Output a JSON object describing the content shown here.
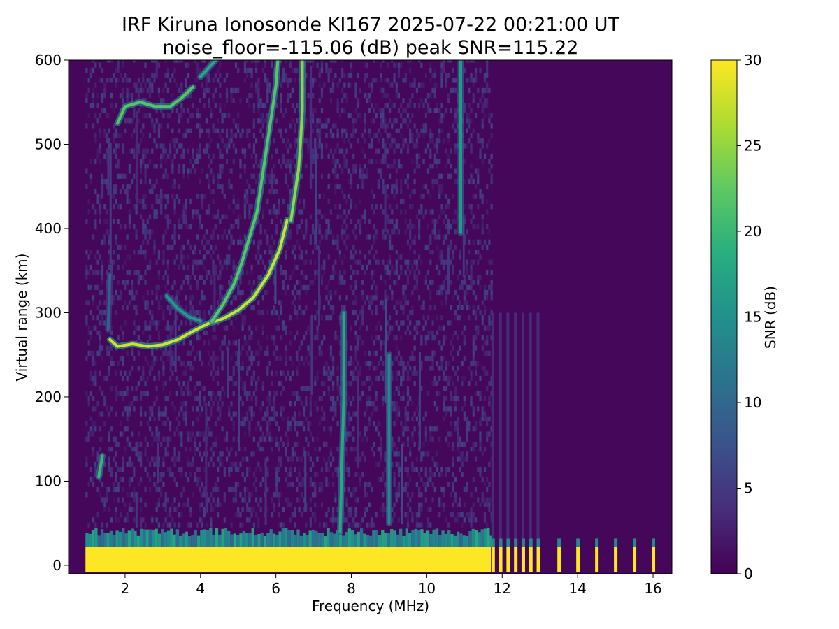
{
  "chart_data": {
    "type": "heatmap",
    "title": "IRF Kiruna Ionosonde KI167 2025-07-22 00:21:00  UT",
    "subtitle": "noise_floor=-115.06 (dB) peak SNR=115.22",
    "xlabel": "Frequency (MHz)",
    "ylabel": "Virtual range (km)",
    "xlim": [
      0.5,
      16.5
    ],
    "ylim": [
      -10,
      600
    ],
    "xticks": [
      2,
      4,
      6,
      8,
      10,
      12,
      14,
      16
    ],
    "yticks": [
      0,
      100,
      200,
      300,
      400,
      500,
      600
    ],
    "grid": false,
    "colorbar": {
      "label": "SNR (dB)",
      "range": [
        0,
        30
      ],
      "ticks": [
        0,
        5,
        10,
        15,
        20,
        25,
        30
      ],
      "colormap": "viridis"
    },
    "background_snr": 0.5,
    "sweep_start_mhz": 0.95,
    "stepped_start_mhz": 11.7,
    "ground_echo": {
      "range_km": [
        -8,
        22
      ],
      "snr": 30
    },
    "ground_fringe": {
      "range_km": [
        22,
        45
      ],
      "snr": 10
    },
    "stepped_frequencies_mhz": [
      11.75,
      11.95,
      12.15,
      12.35,
      12.55,
      12.75,
      12.95,
      13.5,
      14.0,
      14.5,
      15.0,
      15.5,
      16.0
    ],
    "traces": [
      {
        "name_visible": false,
        "snr": 28,
        "points": [
          [
            1.6,
            268
          ],
          [
            1.8,
            260
          ],
          [
            2.2,
            263
          ],
          [
            2.6,
            260
          ],
          [
            3.0,
            262
          ],
          [
            3.4,
            268
          ],
          [
            3.8,
            278
          ],
          [
            4.2,
            287
          ],
          [
            4.6,
            293
          ],
          [
            5.0,
            303
          ],
          [
            5.4,
            318
          ],
          [
            5.8,
            345
          ],
          [
            6.1,
            375
          ],
          [
            6.3,
            410
          ]
        ]
      },
      {
        "name_visible": false,
        "snr": 22,
        "points": [
          [
            4.3,
            290
          ],
          [
            4.6,
            310
          ],
          [
            4.9,
            335
          ],
          [
            5.1,
            360
          ],
          [
            5.3,
            390
          ],
          [
            5.5,
            420
          ],
          [
            5.6,
            450
          ],
          [
            5.7,
            480
          ],
          [
            5.8,
            510
          ],
          [
            5.9,
            540
          ],
          [
            6.0,
            570
          ],
          [
            6.05,
            600
          ]
        ]
      },
      {
        "name_visible": false,
        "snr": 25,
        "points": [
          [
            6.4,
            410
          ],
          [
            6.5,
            440
          ],
          [
            6.6,
            470
          ],
          [
            6.65,
            500
          ],
          [
            6.7,
            540
          ],
          [
            6.7,
            600
          ]
        ]
      },
      {
        "name_visible": false,
        "snr": 16,
        "points": [
          [
            3.1,
            320
          ],
          [
            3.4,
            305
          ],
          [
            3.7,
            295
          ],
          [
            4.0,
            290
          ]
        ]
      },
      {
        "name_visible": false,
        "snr": 22,
        "points": [
          [
            1.8,
            525
          ],
          [
            2.0,
            545
          ],
          [
            2.4,
            550
          ],
          [
            2.8,
            545
          ],
          [
            3.2,
            545
          ],
          [
            3.5,
            555
          ],
          [
            3.8,
            568
          ]
        ]
      },
      {
        "name_visible": false,
        "snr": 18,
        "points": [
          [
            4.0,
            580
          ],
          [
            4.2,
            590
          ],
          [
            4.4,
            600
          ]
        ]
      },
      {
        "name_visible": false,
        "snr": 16,
        "points": [
          [
            10.9,
            395
          ],
          [
            10.9,
            600
          ]
        ]
      },
      {
        "name_visible": false,
        "snr": 18,
        "points": [
          [
            7.7,
            40
          ],
          [
            7.75,
            120
          ],
          [
            7.8,
            200
          ],
          [
            7.8,
            300
          ]
        ]
      },
      {
        "name_visible": false,
        "snr": 14,
        "points": [
          [
            9.0,
            50
          ],
          [
            9.0,
            250
          ]
        ]
      },
      {
        "name_visible": false,
        "snr": 9,
        "points": [
          [
            1.55,
            280
          ],
          [
            1.6,
            345
          ]
        ]
      },
      {
        "name_visible": false,
        "snr": 20,
        "points": [
          [
            1.3,
            105
          ],
          [
            1.4,
            130
          ]
        ]
      }
    ]
  }
}
